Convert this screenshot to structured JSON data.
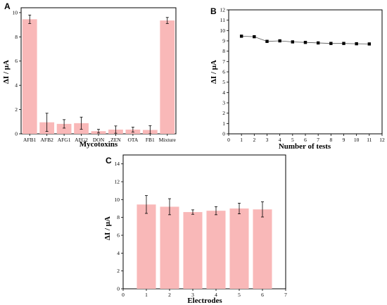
{
  "chart_data": [
    {
      "panel": "A",
      "type": "bar",
      "xlabel": "Mycotoxins",
      "ylabel": "ΔI / μA",
      "ylim": [
        0,
        10.4
      ],
      "yticks": [
        0,
        2,
        4,
        6,
        8,
        10
      ],
      "categories": [
        "AFB1",
        "AFB2",
        "AFG1",
        "AFG2",
        "DON",
        "ZEN",
        "OTA",
        "FB1",
        "Mixture"
      ],
      "values": [
        9.45,
        0.95,
        0.82,
        0.88,
        0.22,
        0.35,
        0.35,
        0.32,
        9.35
      ],
      "errors": [
        0.35,
        0.75,
        0.35,
        0.5,
        0.15,
        0.3,
        0.2,
        0.35,
        0.25
      ]
    },
    {
      "panel": "B",
      "type": "line",
      "xlabel": "Number of tests",
      "ylabel": "ΔI / μA",
      "xlim": [
        0,
        12
      ],
      "ylim": [
        0,
        12
      ],
      "xticks": [
        0,
        1,
        2,
        3,
        4,
        5,
        6,
        7,
        8,
        9,
        10,
        11,
        12
      ],
      "yticks": [
        0,
        1,
        2,
        3,
        4,
        5,
        6,
        7,
        8,
        9,
        10,
        11,
        12
      ],
      "x": [
        1,
        2,
        3,
        4,
        5,
        6,
        7,
        8,
        9,
        10,
        11
      ],
      "y": [
        9.45,
        9.4,
        8.95,
        9.0,
        8.9,
        8.85,
        8.8,
        8.75,
        8.75,
        8.72,
        8.7
      ]
    },
    {
      "panel": "C",
      "type": "bar",
      "xlabel": "Electrodes",
      "ylabel": "ΔI / μA",
      "xlim": [
        0,
        7
      ],
      "ylim": [
        0,
        15
      ],
      "xticks": [
        0,
        1,
        2,
        3,
        4,
        5,
        6,
        7
      ],
      "yticks": [
        0,
        2,
        4,
        6,
        8,
        10,
        12,
        14
      ],
      "x": [
        1,
        2,
        3,
        4,
        5,
        6
      ],
      "values": [
        9.45,
        9.2,
        8.6,
        8.75,
        9.0,
        8.9
      ],
      "errors": [
        1.0,
        0.9,
        0.25,
        0.45,
        0.6,
        0.85
      ]
    }
  ]
}
